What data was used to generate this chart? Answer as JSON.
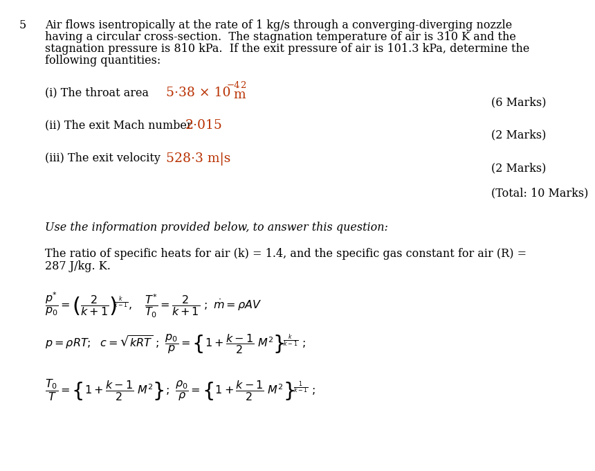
{
  "bg_color": "#ffffff",
  "question_number": "5",
  "question_text_lines": [
    "Air flows isentropically at the rate of 1 kg/s through a converging-diverging nozzle",
    "having a circular cross-section.  The stagnation temperature of air is 310 K and the",
    "stagnation pressure is 810 kPa.  If the exit pressure of air is 101.3 kPa, determine the",
    "following quantities:"
  ],
  "handwriting_color": "#b83000",
  "part_i_label": "(i) The throat area",
  "part_i_answer": "5·38 × 10",
  "part_i_sup1": "−4",
  "part_i_sup2": "2",
  "part_i_unit": "m",
  "part_i_marks": "(6 Marks)",
  "part_ii_label": "(ii) The exit Mach number",
  "part_ii_answer": "2·015",
  "part_ii_marks": "(2 Marks)",
  "part_iii_label": "(iii) The exit velocity",
  "part_iii_answer": "528·3 m|s",
  "part_iii_marks": "(2 Marks)",
  "total": "(Total: 10 Marks)",
  "italic_line": "Use the information provided below, to answer this question:",
  "info_line1": "The ratio of specific heats for air (k) = 1.4, and the specific gas constant for air (R) =",
  "info_line2": "287 J/kg. K.",
  "font_size_body": 11.5,
  "font_size_answer": 13.5,
  "font_size_formula": 11.5
}
